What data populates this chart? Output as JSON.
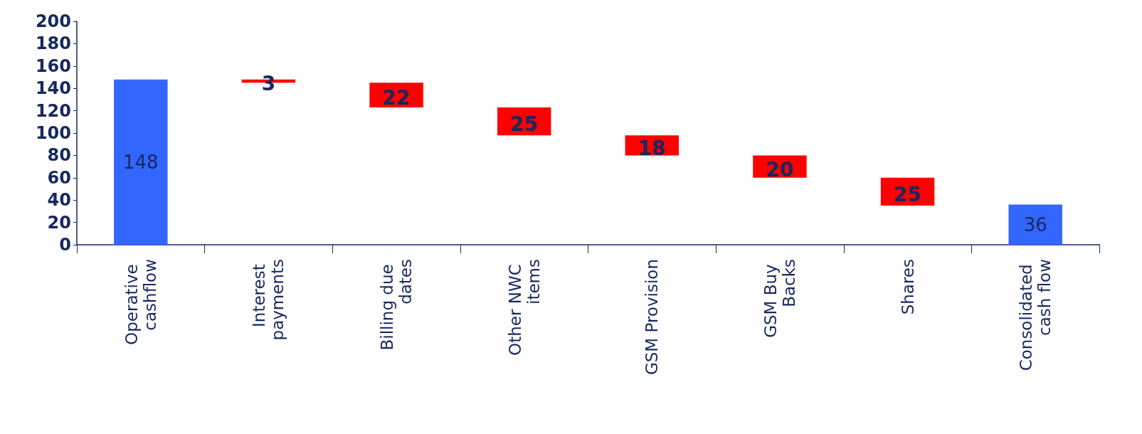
{
  "chart_data": {
    "type": "bar",
    "categories": [
      "Operative cashflow",
      "Interest payments",
      "Billing due dates",
      "Other NWC items",
      "GSM Provision",
      "GSM Buy Backs",
      "Shares",
      "Consolidated cash flow"
    ],
    "values": [
      148,
      3,
      22,
      25,
      18,
      20,
      25,
      36
    ],
    "base": [
      0,
      145,
      123,
      98,
      80,
      60,
      35,
      0
    ],
    "colors": [
      "#3366ff",
      "#ff0000",
      "#ff0000",
      "#ff0000",
      "#ff0000",
      "#ff0000",
      "#ff0000",
      "#3366ff"
    ],
    "ylim": [
      0,
      200
    ],
    "yticks": [
      0,
      20,
      40,
      60,
      80,
      100,
      120,
      140,
      160,
      180,
      200
    ],
    "data_labels": true
  }
}
